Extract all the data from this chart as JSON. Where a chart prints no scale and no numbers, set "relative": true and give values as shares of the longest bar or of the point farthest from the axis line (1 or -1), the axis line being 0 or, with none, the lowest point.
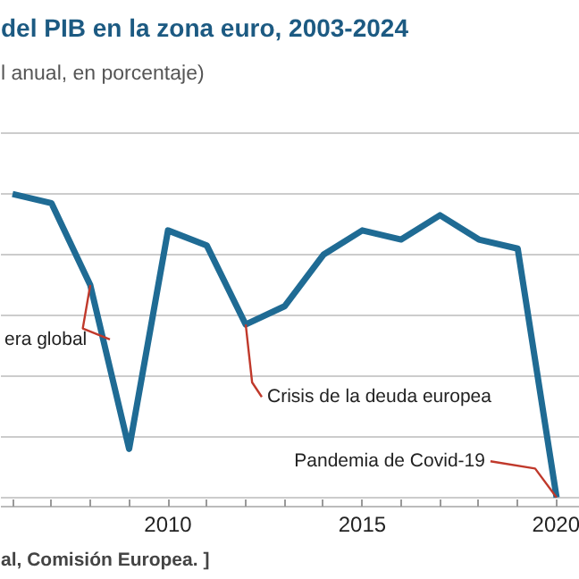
{
  "chart_data": {
    "type": "line",
    "title": "del PIB en la zona euro, 2003-2024",
    "subtitle": "l anual, en porcentaje)",
    "relative": true,
    "x": [
      2006,
      2007,
      2008,
      2009,
      2010,
      2011,
      2012,
      2013,
      2014,
      2015,
      2016,
      2017,
      2018,
      2019,
      2020
    ],
    "series": [
      {
        "color": "#1f6b94",
        "values": [
          1,
          0.97,
          0.7,
          0.16,
          0.88,
          0.83,
          0.57,
          0.63,
          0.8,
          0.88,
          0.85,
          0.93,
          0.85,
          0.82,
          0
        ]
      }
    ],
    "xlim": [
      2005.7,
      2020.6
    ],
    "xticks": [
      {
        "value": 2006,
        "label": null
      },
      {
        "value": 2007,
        "label": null
      },
      {
        "value": 2008,
        "label": null
      },
      {
        "value": 2009,
        "label": null
      },
      2010,
      {
        "value": 2011,
        "label": null
      },
      {
        "value": 2012,
        "label": null
      },
      {
        "value": 2013,
        "label": null
      },
      {
        "value": 2014,
        "label": null
      },
      2015,
      {
        "value": 2016,
        "label": null
      },
      {
        "value": 2017,
        "label": null
      },
      {
        "value": 2018,
        "label": null
      },
      {
        "value": 2019,
        "label": null
      },
      2020
    ],
    "annotations": [
      {
        "text": "era global",
        "x": 2008,
        "y": 0.7
      },
      {
        "text": "Crisis de la deuda europea",
        "x": 2012,
        "y": 0.57
      },
      {
        "text": "Pandemia de Covid-19",
        "x": 2020,
        "y": 0
      },
      "al, Comisión Europea. ]"
    ],
    "grid": "y",
    "marker": "none"
  }
}
